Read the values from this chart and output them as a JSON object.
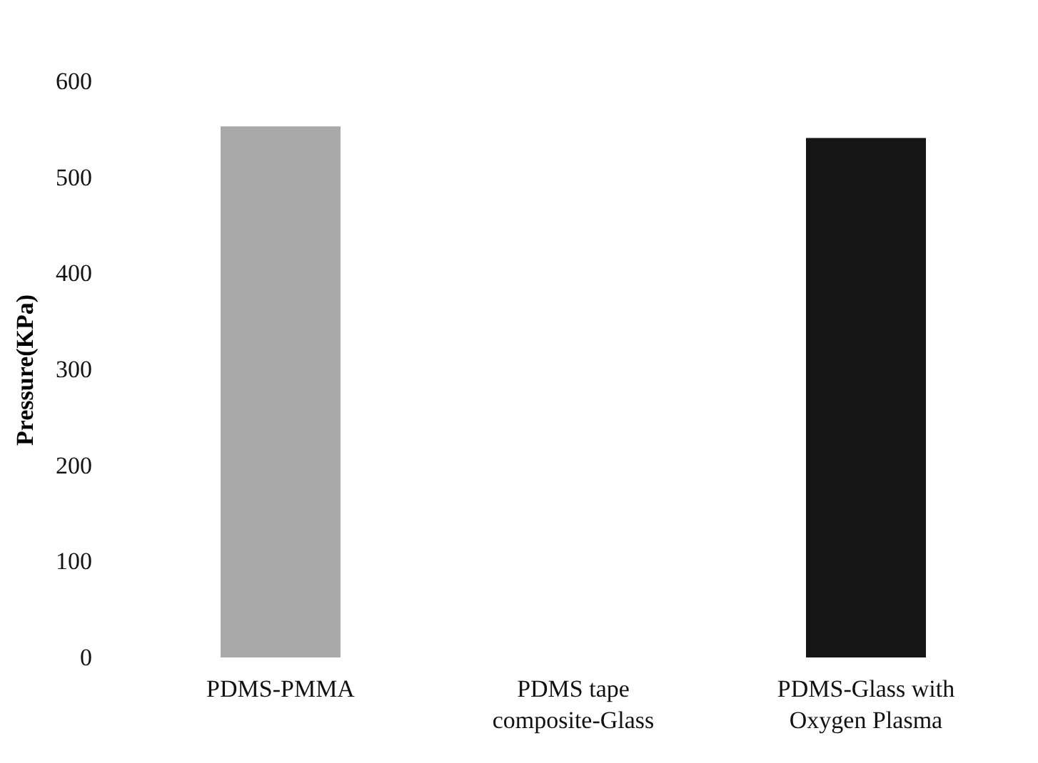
{
  "chart_data": {
    "type": "bar",
    "ylabel": "Pressure(KPa)",
    "categories": [
      "PDMS-PMMA",
      "PDMS tape composite-Glass",
      "PDMS-Glass with Oxygen Plasma"
    ],
    "values": [
      553,
      null,
      541
    ],
    "colors": [
      "#a9a9a9",
      "#ffffff",
      "#151515"
    ],
    "ylim": [
      0,
      600
    ],
    "yticks": [
      0,
      100,
      200,
      300,
      400,
      500,
      600
    ]
  }
}
